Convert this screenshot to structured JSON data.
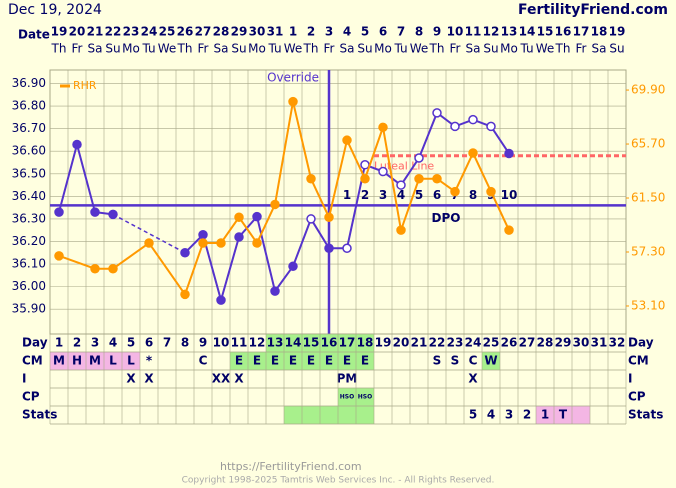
{
  "header": {
    "date": "Dec 19, 2024",
    "site": "FertilityFriend.com",
    "date_label": "Date"
  },
  "calendar": {
    "dates": [
      19,
      20,
      21,
      22,
      23,
      24,
      25,
      26,
      27,
      28,
      29,
      30,
      31,
      1,
      2,
      3,
      4,
      5,
      6,
      7,
      8,
      9,
      10,
      11,
      12,
      13,
      14,
      15,
      16,
      17,
      18,
      19
    ],
    "weekdays": [
      "Th",
      "Fr",
      "Sa",
      "Su",
      "Mo",
      "Tu",
      "We",
      "Th",
      "Fr",
      "Sa",
      "Su",
      "Mo",
      "Tu",
      "We",
      "Th",
      "Fr",
      "Sa",
      "Su",
      "Mo",
      "Tu",
      "We",
      "Th",
      "Fr",
      "Sa",
      "Su",
      "Mo",
      "Tu",
      "We",
      "Th",
      "Fr",
      "Sa",
      "Su"
    ]
  },
  "chart_data": {
    "type": "line",
    "xlim": [
      0.5,
      32.5
    ],
    "ylim": [
      35.79,
      36.96
    ],
    "yticks": [
      {
        "value": 35.9,
        "label": "35.90"
      },
      {
        "value": 36.0,
        "label": "36.00"
      },
      {
        "value": 36.1,
        "label": "36.10"
      },
      {
        "value": 36.2,
        "label": "36.20"
      },
      {
        "value": 36.3,
        "label": "36.30"
      },
      {
        "value": 36.4,
        "label": "36.40"
      },
      {
        "value": 36.5,
        "label": "36.50"
      },
      {
        "value": 36.6,
        "label": "36.60"
      },
      {
        "value": 36.7,
        "label": "36.70"
      },
      {
        "value": 36.8,
        "label": "36.80"
      },
      {
        "value": 36.9,
        "label": "36.90"
      }
    ],
    "y2lim": [
      50.92,
      71.46
    ],
    "y2ticks": [
      {
        "value": 53.1,
        "label": "53.10"
      },
      {
        "value": 57.3,
        "label": "57.30"
      },
      {
        "value": 61.5,
        "label": "61.50"
      },
      {
        "value": 65.7,
        "label": "65.70"
      },
      {
        "value": 69.9,
        "label": "69.90"
      }
    ],
    "grid": true,
    "legend": "top-left",
    "series": [
      {
        "color": "#5533cc",
        "x": [
          1,
          2,
          3,
          4,
          5,
          6,
          7,
          8,
          9,
          10,
          11,
          12,
          13,
          14,
          15,
          16,
          17,
          18,
          19,
          20,
          21,
          22,
          23,
          24,
          25,
          26
        ],
        "values": [
          36.33,
          36.63,
          36.33,
          36.32,
          null,
          null,
          null,
          36.15,
          36.23,
          35.94,
          36.22,
          36.31,
          35.98,
          36.09,
          36.3,
          36.17,
          36.17,
          36.54,
          36.51,
          36.45,
          36.57,
          36.77,
          36.71,
          36.74,
          36.71,
          36.59
        ],
        "hollow": [
          false,
          false,
          false,
          false,
          false,
          false,
          false,
          false,
          false,
          false,
          false,
          false,
          false,
          false,
          true,
          false,
          true,
          true,
          true,
          true,
          true,
          true,
          true,
          true,
          true,
          false
        ]
      },
      {
        "name": "RHR",
        "color": "#ff9900",
        "axis": "y2",
        "x": [
          1,
          3,
          4,
          6,
          8,
          9,
          10,
          11,
          12,
          13,
          14,
          15,
          16,
          17,
          18,
          19,
          20,
          21,
          22,
          23,
          24,
          25,
          26
        ],
        "values": [
          57,
          56,
          56,
          58,
          54,
          58,
          58,
          60,
          58,
          61,
          69,
          63,
          60,
          66,
          63,
          67,
          59,
          63,
          63,
          62,
          65,
          62,
          59
        ]
      }
    ],
    "coverline": 36.36,
    "override": {
      "label": "Override",
      "day": 16
    },
    "dpo": {
      "label": "DPO",
      "x": [
        17,
        18,
        19,
        20,
        21,
        22,
        23,
        24,
        25,
        26
      ],
      "values": [
        1,
        2,
        3,
        4,
        5,
        6,
        7,
        8,
        9,
        10
      ]
    },
    "luteal_line": {
      "label": "Luteal Line",
      "value": 36.58,
      "from": 19,
      "color": "#ff6666"
    }
  },
  "table": {
    "day_label": "Day",
    "days": [
      1,
      2,
      3,
      4,
      5,
      6,
      7,
      8,
      9,
      10,
      11,
      12,
      13,
      14,
      15,
      16,
      17,
      18,
      19,
      20,
      21,
      22,
      23,
      24,
      25,
      26,
      27,
      28,
      29,
      30,
      31,
      32
    ],
    "day_highlights": [
      {
        "from": 13,
        "to": 18,
        "color": "#a8f08c"
      }
    ],
    "rows": [
      {
        "label": "CM",
        "cells": [
          "M",
          "H",
          "M",
          "L",
          "L",
          "*",
          null,
          null,
          "C",
          null,
          "E",
          "E",
          "E",
          "E",
          "E",
          "E",
          "E",
          "E",
          null,
          null,
          null,
          "S",
          "S",
          "C",
          "W",
          null,
          null,
          null,
          null,
          null,
          null,
          null
        ],
        "highlights": [
          {
            "from": 1,
            "to": 5,
            "color": "#f4b6e4"
          },
          {
            "from": 11,
            "to": 18,
            "color": "#a8f08c"
          },
          {
            "from": 25,
            "to": 25,
            "color": "#a8f08c"
          }
        ]
      },
      {
        "label": "I",
        "cells": [
          null,
          null,
          null,
          null,
          "X",
          "X",
          null,
          null,
          null,
          "XX",
          "X",
          null,
          null,
          null,
          null,
          null,
          "PM",
          null,
          null,
          null,
          null,
          null,
          null,
          "X",
          null,
          null,
          null,
          null,
          null,
          null,
          null,
          null
        ],
        "highlights": []
      },
      {
        "label": "CP",
        "cells": [
          null,
          null,
          null,
          null,
          null,
          null,
          null,
          null,
          null,
          null,
          null,
          null,
          null,
          null,
          null,
          null,
          "HSO",
          "HSO",
          null,
          null,
          null,
          null,
          null,
          null,
          null,
          null,
          null,
          null,
          null,
          null,
          null,
          null
        ],
        "highlights": [
          {
            "from": 17,
            "to": 18,
            "color": "#a8f08c"
          }
        ]
      },
      {
        "label": "Stats",
        "cells": [
          null,
          null,
          null,
          null,
          null,
          null,
          null,
          null,
          null,
          null,
          null,
          null,
          null,
          null,
          null,
          null,
          null,
          null,
          null,
          null,
          null,
          null,
          null,
          "5",
          "4",
          "3",
          "2",
          "1",
          "T",
          null,
          null,
          null
        ],
        "highlights": [
          {
            "from": 14,
            "to": 18,
            "color": "#a8f08c"
          },
          {
            "from": 28,
            "to": 30,
            "color": "#f4b6e4"
          }
        ]
      }
    ]
  },
  "footer": {
    "url": "https://FertilityFriend.com",
    "copyright": "Copyright 1998-2025 Tamtris Web Services Inc. - All Rights Reserved."
  }
}
